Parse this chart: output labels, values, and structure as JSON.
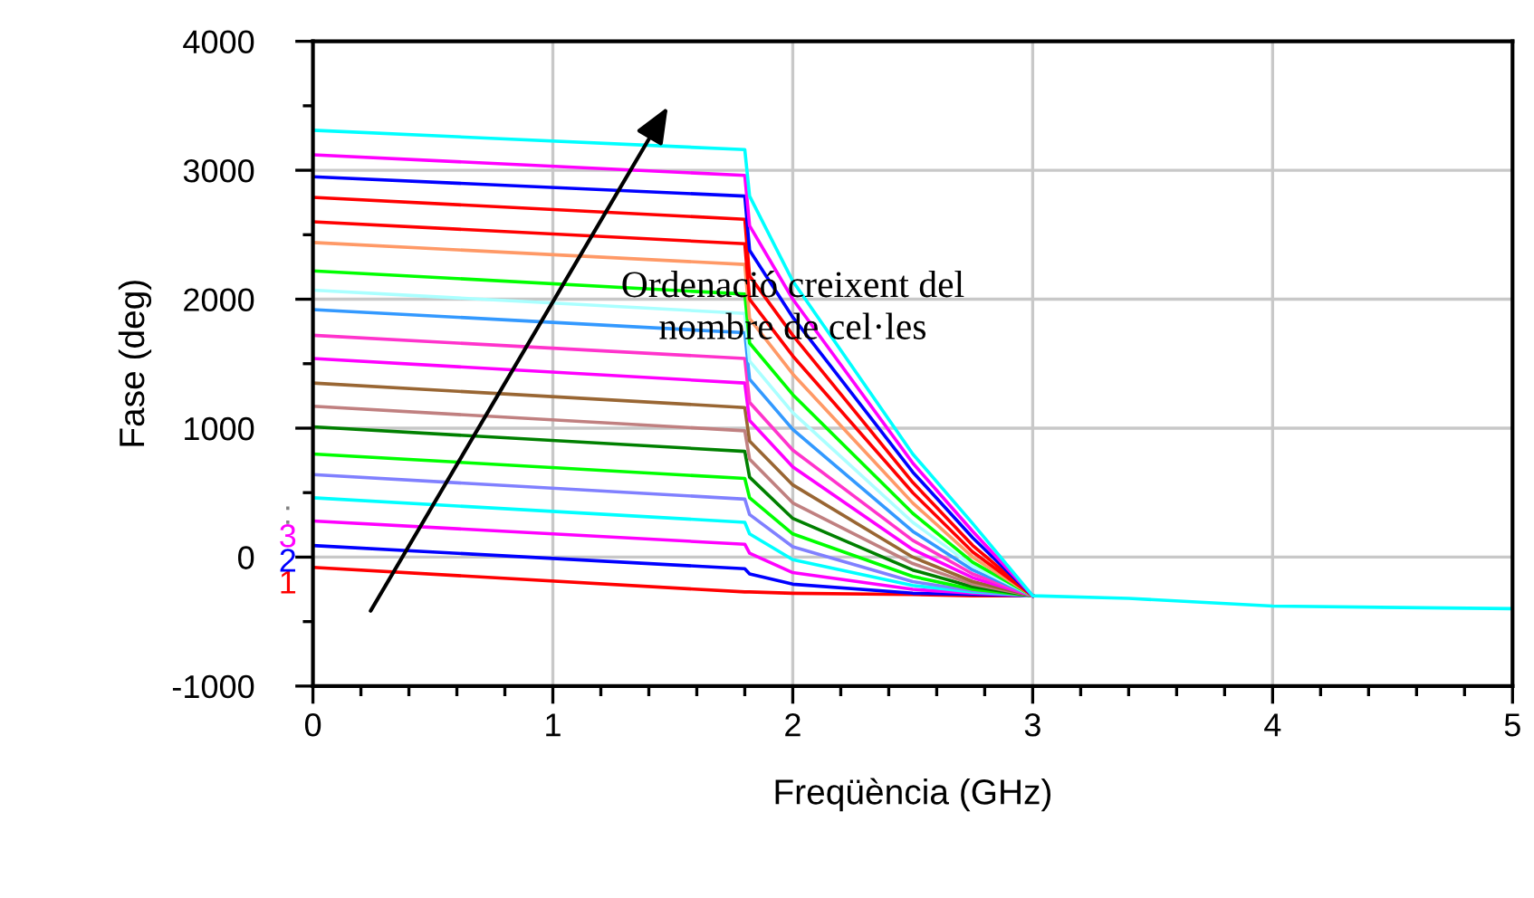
{
  "chart_data": {
    "type": "line",
    "xlabel": "Freqüència (GHz)",
    "ylabel": "Fase (deg)",
    "xlim": [
      0,
      5
    ],
    "xticks": [
      0,
      1,
      2,
      3,
      4,
      5
    ],
    "ylim": [
      -1000,
      4000
    ],
    "yticks": [
      -1000,
      0,
      1000,
      2000,
      3000,
      4000
    ],
    "grid": true,
    "line_style": "solid",
    "marker": "none",
    "x": [
      0,
      1.8,
      1.82,
      2.0,
      2.5,
      2.75,
      3.0,
      3.4,
      4.0,
      5.0
    ],
    "series": [
      {
        "color": "#ff0000",
        "values": [
          -80,
          -270,
          -270,
          -280,
          -290,
          -300,
          -300,
          null,
          null,
          null
        ]
      },
      {
        "color": "#0000ff",
        "values": [
          90,
          -90,
          -130,
          -210,
          -280,
          -290,
          -300,
          null,
          null,
          null
        ]
      },
      {
        "color": "#ff00ff",
        "values": [
          280,
          100,
          30,
          -120,
          -250,
          -280,
          -300,
          null,
          null,
          null
        ]
      },
      {
        "color": "#00ffff",
        "values": [
          460,
          270,
          180,
          -20,
          -220,
          -270,
          -300,
          null,
          null,
          null
        ]
      },
      {
        "color": "#8080ff",
        "values": [
          640,
          450,
          330,
          80,
          -190,
          -260,
          -300,
          null,
          null,
          null
        ]
      },
      {
        "color": "#00ff00",
        "values": [
          800,
          610,
          460,
          180,
          -150,
          -250,
          -300,
          null,
          null,
          null
        ]
      },
      {
        "color": "#008000",
        "values": [
          1010,
          820,
          620,
          300,
          -100,
          -230,
          -300,
          null,
          null,
          null
        ]
      },
      {
        "color": "#c08080",
        "values": [
          1170,
          980,
          760,
          420,
          -50,
          -210,
          -300,
          null,
          null,
          null
        ]
      },
      {
        "color": "#996633",
        "values": [
          1350,
          1160,
          900,
          560,
          0,
          -190,
          -300,
          null,
          null,
          null
        ]
      },
      {
        "color": "#ff00ff",
        "values": [
          1540,
          1350,
          1060,
          700,
          60,
          -160,
          -300,
          null,
          null,
          null
        ]
      },
      {
        "color": "#ff33cc",
        "values": [
          1720,
          1540,
          1200,
          830,
          130,
          -130,
          -300,
          null,
          null,
          null
        ]
      },
      {
        "color": "#3399ff",
        "values": [
          1920,
          1740,
          1380,
          990,
          200,
          -100,
          -300,
          null,
          null,
          null
        ]
      },
      {
        "color": "#aaffff",
        "values": [
          2070,
          1890,
          1520,
          1120,
          270,
          -70,
          -300,
          null,
          null,
          null
        ]
      },
      {
        "color": "#00ff00",
        "values": [
          2220,
          2040,
          1660,
          1260,
          340,
          -40,
          -300,
          null,
          null,
          null
        ]
      },
      {
        "color": "#ff9966",
        "values": [
          2440,
          2270,
          1850,
          1420,
          420,
          0,
          -300,
          null,
          null,
          null
        ]
      },
      {
        "color": "#ff0000",
        "values": [
          2600,
          2430,
          2000,
          1560,
          500,
          40,
          -300,
          null,
          null,
          null
        ]
      },
      {
        "color": "#ff0000",
        "values": [
          2790,
          2620,
          2180,
          1720,
          580,
          90,
          -300,
          null,
          null,
          null
        ]
      },
      {
        "color": "#0000ff",
        "values": [
          2950,
          2800,
          2380,
          1860,
          660,
          150,
          -300,
          null,
          null,
          null
        ]
      },
      {
        "color": "#ff00ff",
        "values": [
          3120,
          2960,
          2570,
          2000,
          730,
          200,
          -300,
          null,
          null,
          null
        ]
      },
      {
        "color": "#00ffff",
        "values": [
          3310,
          3160,
          2800,
          2140,
          800,
          260,
          -300,
          -320,
          -380,
          -400
        ]
      }
    ],
    "annotations": [
      "1",
      "2",
      "3",
      ":",
      "Ordenació creixent del\nnombre de cel·les"
    ]
  }
}
